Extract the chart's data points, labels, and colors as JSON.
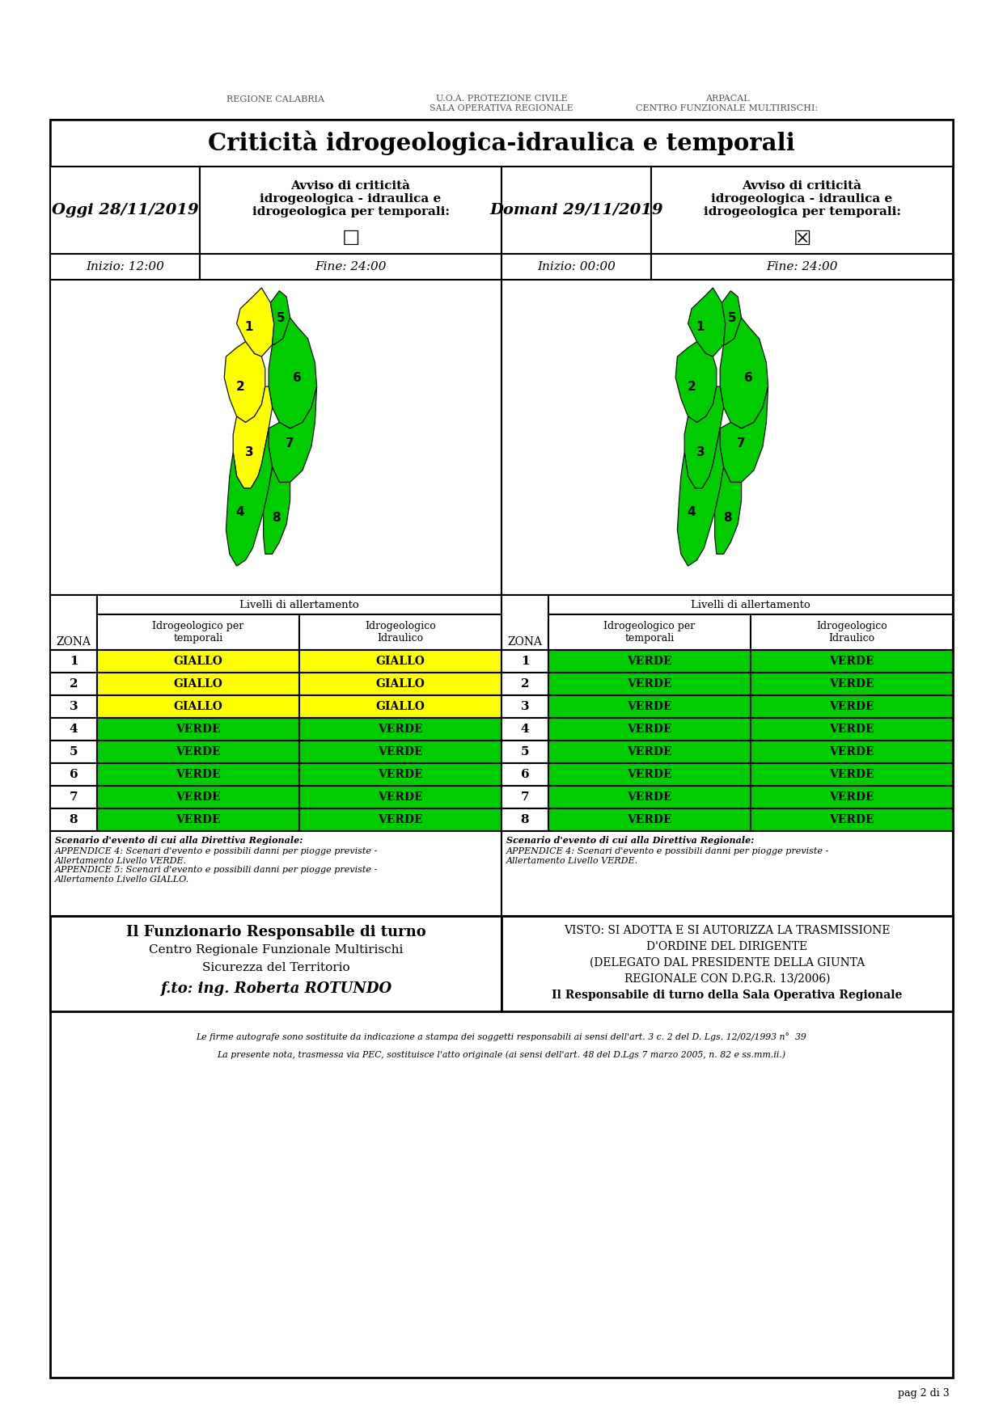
{
  "title": "Criticità idrogeologica-idraulica e temporali",
  "page_bg": "#ffffff",
  "header_row1": {
    "col1": "Oggi 28/11/2019",
    "col2": "Avviso di criticità\nidrogeologica - idraulica e\nidrogeologica per temporali:",
    "col3": "Domani 29/11/2019",
    "col4": "Avviso di criticità\nidrogeologica - idraulica e\nidrogeologica per temporali:"
  },
  "header_row2": {
    "col1": "Inizio: 12:00",
    "col2": "Fine: 24:00",
    "col3": "Inizio: 00:00",
    "col4": "Fine: 24:00"
  },
  "zones": [
    1,
    2,
    3,
    4,
    5,
    6,
    7,
    8
  ],
  "left_levels": [
    [
      "GIALLO",
      "GIALLO"
    ],
    [
      "GIALLO",
      "GIALLO"
    ],
    [
      "GIALLO",
      "GIALLO"
    ],
    [
      "VERDE",
      "VERDE"
    ],
    [
      "VERDE",
      "VERDE"
    ],
    [
      "VERDE",
      "VERDE"
    ],
    [
      "VERDE",
      "VERDE"
    ],
    [
      "VERDE",
      "VERDE"
    ]
  ],
  "right_levels": [
    [
      "VERDE",
      "VERDE"
    ],
    [
      "VERDE",
      "VERDE"
    ],
    [
      "VERDE",
      "VERDE"
    ],
    [
      "VERDE",
      "VERDE"
    ],
    [
      "VERDE",
      "VERDE"
    ],
    [
      "VERDE",
      "VERDE"
    ],
    [
      "VERDE",
      "VERDE"
    ],
    [
      "VERDE",
      "VERDE"
    ]
  ],
  "yellow_color": "#ffff00",
  "green_color": "#00cc00",
  "scenario_left_bold": "Scenario d'evento di cui alla Direttiva Regionale:",
  "scenario_left_normal": "APPENDICE 4: Scenari d'evento e possibili danni per piogge previste -\nAllertamento Livello VERDE.\nAPPENDICE 5: Scenari d'evento e possibili danni per piogge previste -\nAllertamento Livello GIALLO.",
  "scenario_right_bold": "Scenario d'evento di cui alla Direttiva Regionale:",
  "scenario_right_normal": "APPENDICE 4: Scenari d'evento e possibili danni per piogge previste -\nAllertamento Livello VERDE.",
  "footer_left_line1": "Il Funzionario Responsabile di turno",
  "footer_left_line2": "Centro Regionale Funzionale Multirischi",
  "footer_left_line3": "Sicurezza del Territorio",
  "footer_left_line4": "f.to: ing. Roberta ROTUNDO",
  "footer_right_line1": "VISTO: SI ADOTTA E SI AUTORIZZA LA TRASMISSIONE",
  "footer_right_line2": "D'ORDINE DEL DIRIGENTE",
  "footer_right_line3": "(DELEGATO DAL PRESIDENTE DELLA GIUNTA",
  "footer_right_line4": "REGIONALE CON D.P.G.R. 13/2006)",
  "footer_right_line5": "Il Responsabile di turno della Sala Operativa Regionale",
  "footnote1": "Le firme autografe sono sostituite da indicazione a stampa dei soggetti responsabili ai sensi dell'art. 3 c. 2 del D. Lgs. 12/02/1993 n°  39",
  "footnote2": "La presente nota, trasmessa via PEC, sostituisce l'atto originale (ai sensi dell'art. 48 del D.Lgs 7 marzo 2005, n. 82 e ss.mm.ii.)",
  "page_num": "pag 2 di 3",
  "logo_left": "REGIONE CALABRIA",
  "logo_mid1": "U.O.A. PROTEZIONE CIVILE",
  "logo_mid2": "SALA OPERATIVA REGIONALE",
  "logo_right1": "ARPACAL",
  "logo_right2": "CENTRO FUNZIONALE MULTIRISCHI:"
}
